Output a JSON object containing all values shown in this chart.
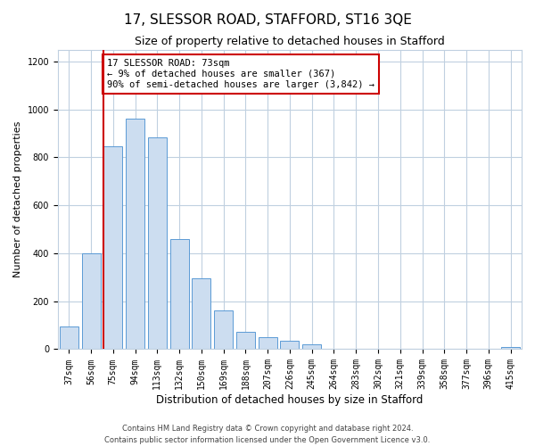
{
  "title1": "17, SLESSOR ROAD, STAFFORD, ST16 3QE",
  "title2": "Size of property relative to detached houses in Stafford",
  "xlabel": "Distribution of detached houses by size in Stafford",
  "ylabel": "Number of detached properties",
  "categories": [
    "37sqm",
    "56sqm",
    "75sqm",
    "94sqm",
    "113sqm",
    "132sqm",
    "150sqm",
    "169sqm",
    "188sqm",
    "207sqm",
    "226sqm",
    "245sqm",
    "264sqm",
    "283sqm",
    "302sqm",
    "321sqm",
    "339sqm",
    "358sqm",
    "377sqm",
    "396sqm",
    "415sqm"
  ],
  "values": [
    95,
    400,
    845,
    960,
    885,
    460,
    295,
    160,
    73,
    50,
    35,
    20,
    0,
    0,
    0,
    0,
    0,
    0,
    0,
    0,
    10
  ],
  "bar_color": "#ccddf0",
  "bar_edge_color": "#5b9bd5",
  "annotation_box_text": "17 SLESSOR ROAD: 73sqm\n← 9% of detached houses are smaller (367)\n90% of semi-detached houses are larger (3,842) →",
  "annotation_box_color": "#ffffff",
  "annotation_box_edge_color": "#cc0000",
  "marker_line_color": "#cc0000",
  "marker_bin_index": 2,
  "ylim": [
    0,
    1250
  ],
  "yticks": [
    0,
    200,
    400,
    600,
    800,
    1000,
    1200
  ],
  "footnote1": "Contains HM Land Registry data © Crown copyright and database right 2024.",
  "footnote2": "Contains public sector information licensed under the Open Government Licence v3.0.",
  "background_color": "#ffffff",
  "grid_color": "#c0d0e0",
  "title1_fontsize": 11,
  "title2_fontsize": 9,
  "xlabel_fontsize": 8.5,
  "ylabel_fontsize": 8,
  "tick_fontsize": 7,
  "footnote_fontsize": 6,
  "ann_fontsize": 7.5
}
